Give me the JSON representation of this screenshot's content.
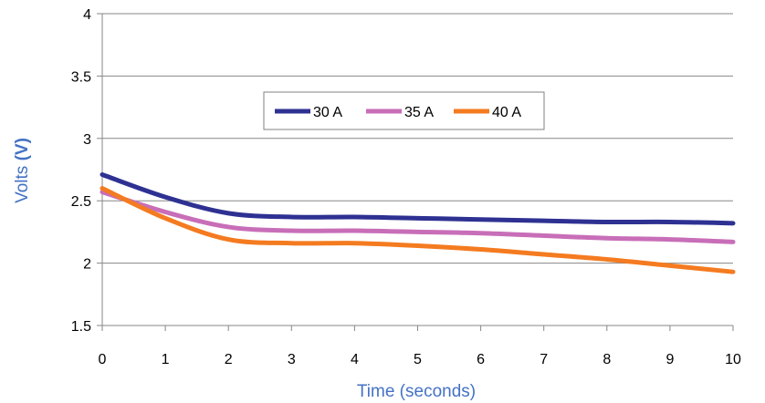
{
  "chart_data": {
    "type": "line",
    "title": "",
    "xlabel": "Time (seconds)",
    "ylabel": {
      "plain": "Volts ",
      "unit": "(V)"
    },
    "xlim": [
      0,
      10
    ],
    "ylim": [
      1.5,
      4
    ],
    "xticks": [
      "0",
      "1",
      "2",
      "3",
      "4",
      "5",
      "6",
      "7",
      "8",
      "9",
      "10"
    ],
    "yticks": [
      "1.5",
      "2",
      "2.5",
      "3",
      "3.5",
      "4"
    ],
    "grid": true,
    "legend_position": "inside-upper-center",
    "x": [
      0,
      1,
      2,
      3,
      4,
      5,
      6,
      7,
      8,
      9,
      10
    ],
    "series": [
      {
        "name": "30 A",
        "color": "#2e3192",
        "values": [
          2.71,
          2.53,
          2.4,
          2.37,
          2.37,
          2.36,
          2.35,
          2.34,
          2.33,
          2.33,
          2.32
        ]
      },
      {
        "name": "35 A",
        "color": "#c86eb8",
        "values": [
          2.57,
          2.41,
          2.29,
          2.26,
          2.26,
          2.25,
          2.24,
          2.22,
          2.2,
          2.19,
          2.17
        ]
      },
      {
        "name": "40 A",
        "color": "#f47b20",
        "values": [
          2.6,
          2.36,
          2.19,
          2.16,
          2.16,
          2.14,
          2.11,
          2.07,
          2.03,
          1.98,
          1.93
        ]
      }
    ]
  }
}
